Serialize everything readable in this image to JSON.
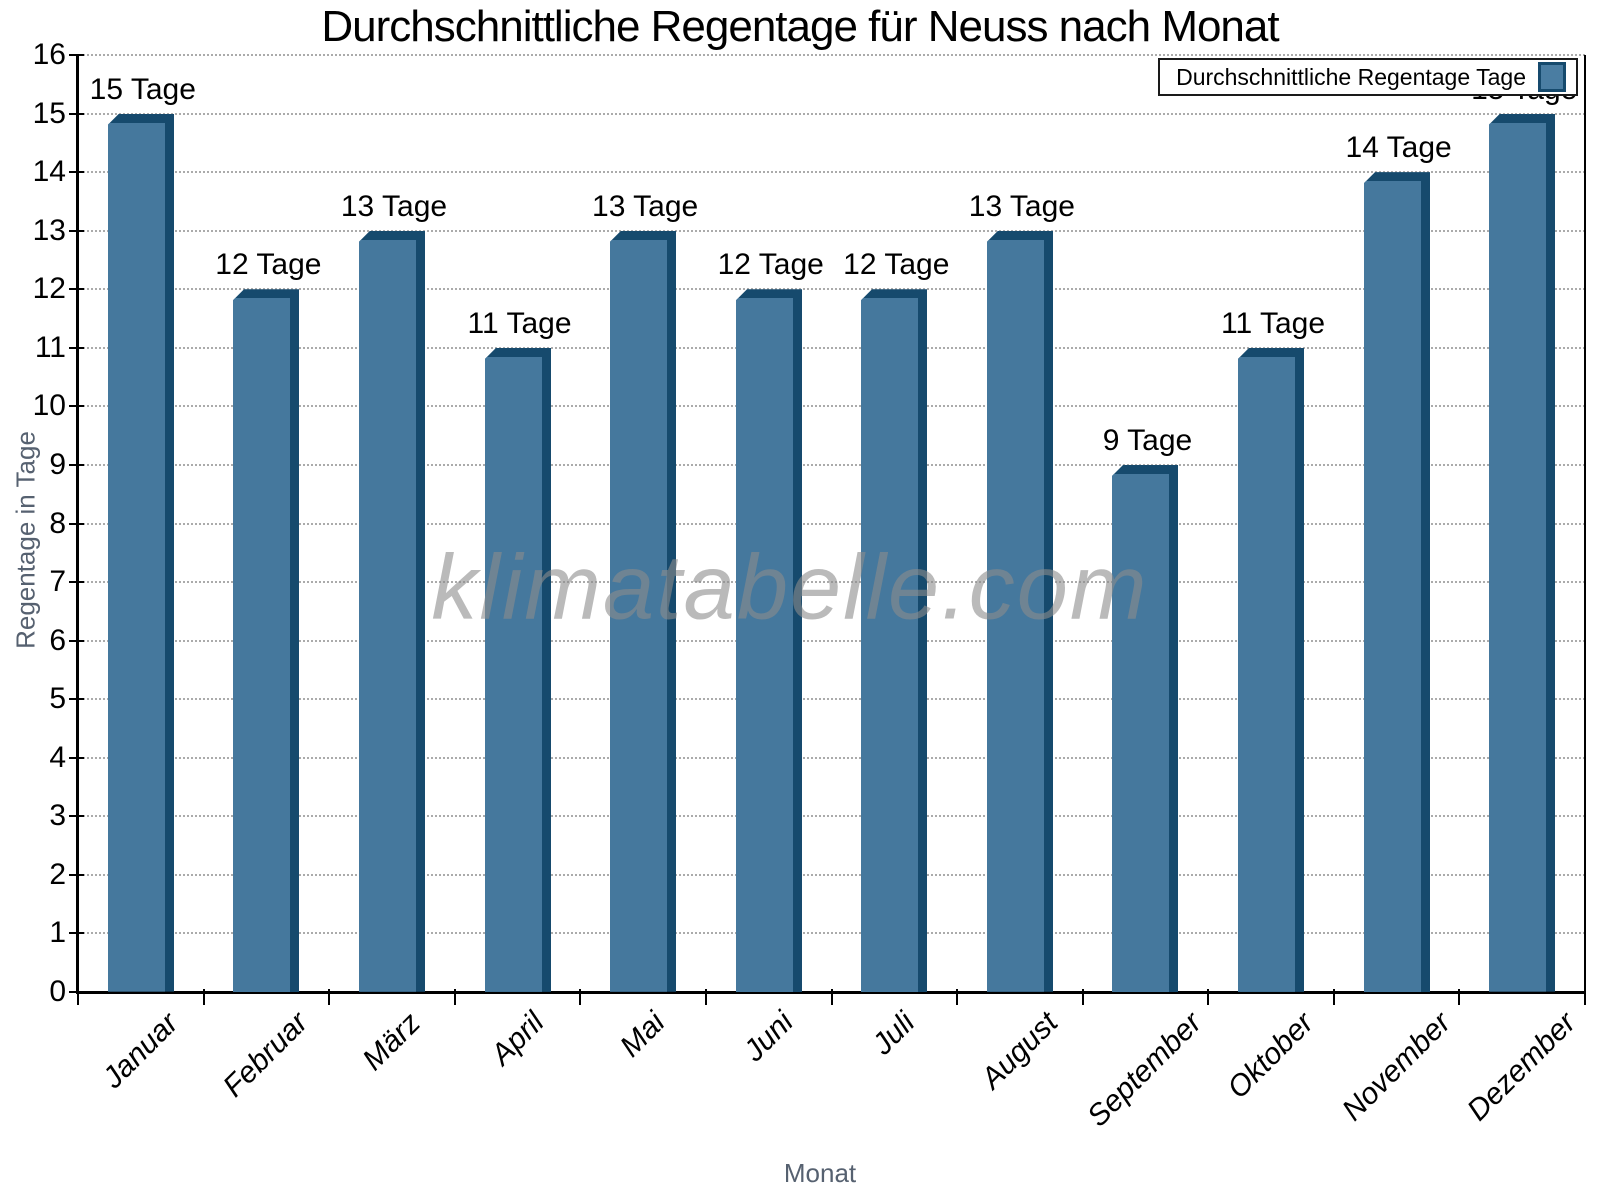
{
  "title": "Durchschnittliche Regentage für Neuss nach Monat",
  "legend": {
    "label": "Durchschnittliche Regentage Tage",
    "position": "top-right"
  },
  "watermark": "klimatabelle.com",
  "axes": {
    "y_title": "Regentage in Tage",
    "x_title": "Monat",
    "y_ticks": [
      0,
      1,
      2,
      3,
      4,
      5,
      6,
      7,
      8,
      9,
      10,
      11,
      12,
      13,
      14,
      15,
      16
    ]
  },
  "chart_data": {
    "type": "bar",
    "title": "Durchschnittliche Regentage für Neuss nach Monat",
    "categories": [
      "Januar",
      "Februar",
      "März",
      "April",
      "Mai",
      "Juni",
      "Juli",
      "August",
      "September",
      "Oktober",
      "November",
      "Dezember"
    ],
    "values": [
      15,
      12,
      13,
      11,
      13,
      12,
      12,
      13,
      9,
      11,
      14,
      15
    ],
    "value_suffix": "Tage",
    "xlabel": "Monat",
    "ylabel": "Regentage in Tage",
    "ylim": [
      0,
      16
    ],
    "y_tick_step": 1,
    "grid": "dotted horizontal",
    "legend_entries": [
      "Durchschnittliche Regentage Tage"
    ],
    "legend_position": "top-right"
  },
  "colors": {
    "bar_face": "#45789d",
    "bar_edge": "#164a6d",
    "legend_swatch": "#4a7da2",
    "gridline": "#ababab",
    "axis": "#000000",
    "axis_title_text": "#566170",
    "watermark_text": "#8c8c8c"
  }
}
